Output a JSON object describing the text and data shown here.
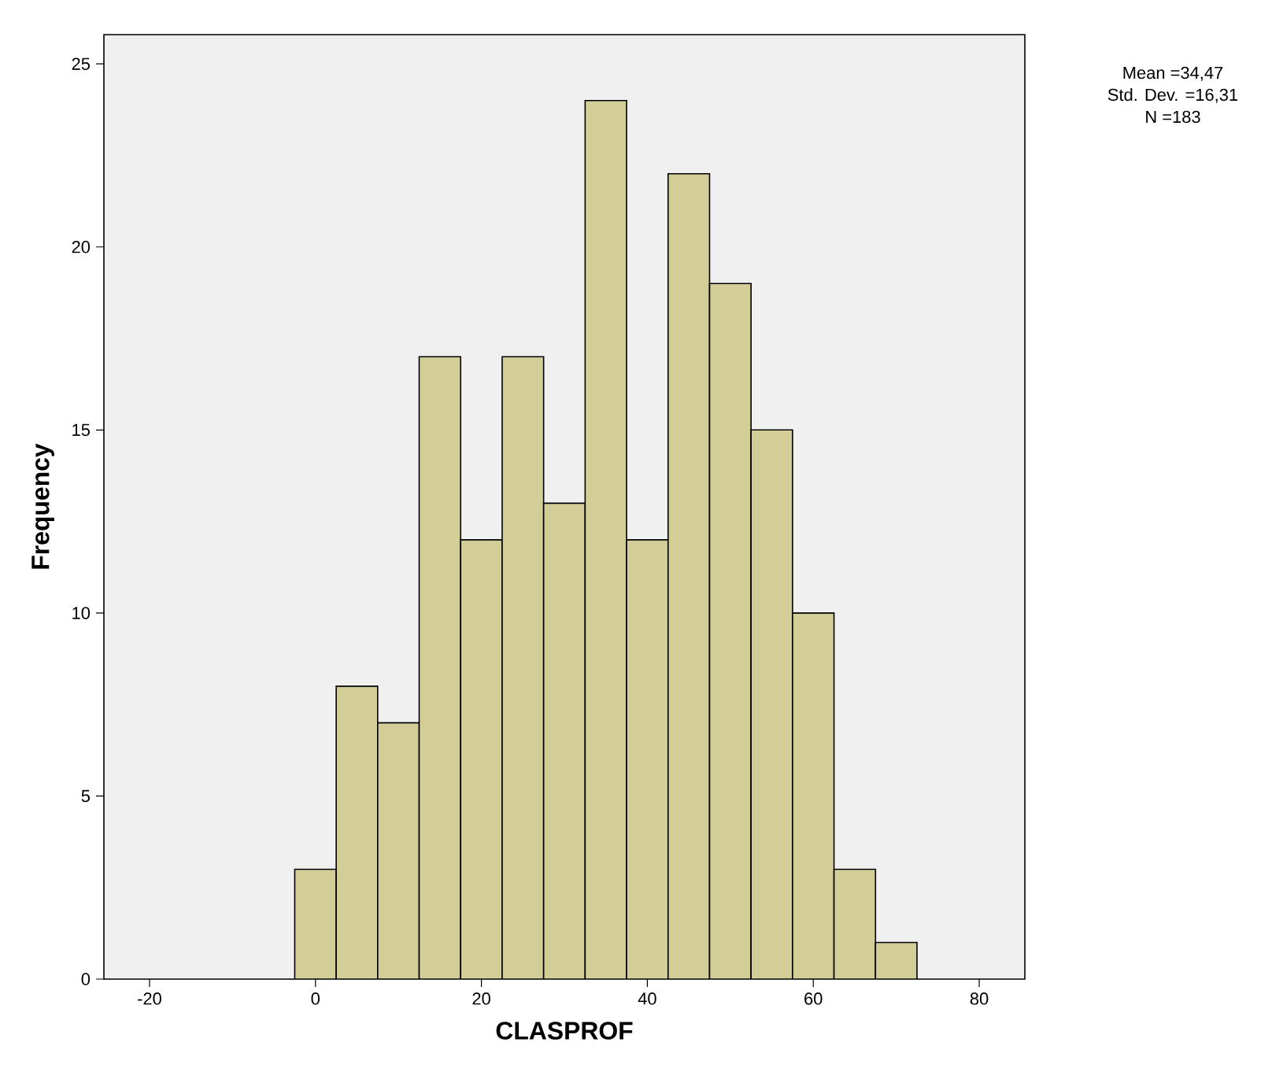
{
  "chart_data": {
    "type": "histogram",
    "xlabel": "CLASPROF",
    "ylabel": "Frequency",
    "bins": [
      -2.5,
      2.5,
      7.5,
      12.5,
      17.5,
      22.5,
      27.5,
      32.5,
      37.5,
      42.5,
      47.5,
      52.5,
      57.5,
      62.5,
      67.5,
      72.5
    ],
    "values": [
      3,
      8,
      7,
      17,
      12,
      17,
      13,
      24,
      12,
      22,
      19,
      15,
      10,
      3,
      1
    ],
    "color": "#d3ce97",
    "xlim": [
      -25.5,
      85.5
    ],
    "ylim": [
      0,
      25.8
    ],
    "xticks": [
      -20,
      0,
      20,
      40,
      60,
      80
    ],
    "yticks": [
      0,
      5,
      10,
      15,
      20,
      25
    ],
    "annotations": [
      "Mean =34,47",
      "Std. Dev. =16,31",
      "N =183"
    ]
  }
}
